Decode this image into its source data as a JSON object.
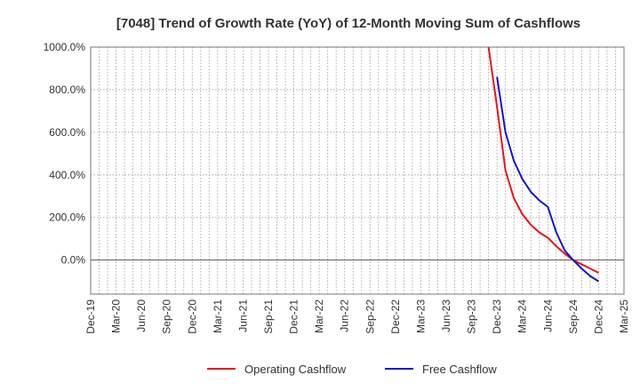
{
  "chart_data": {
    "type": "line",
    "title": "[7048]  Trend of Growth Rate (YoY) of 12-Month Moving Sum of Cashflows",
    "ylim": [
      -160,
      1000
    ],
    "yticks": [
      0,
      200,
      400,
      600,
      800,
      1000
    ],
    "ytick_labels": [
      "0.0%",
      "200.0%",
      "400.0%",
      "600.0%",
      "800.0%",
      "1000.0%"
    ],
    "x_start": "2019-12",
    "x_end": "2025-03",
    "x_tick_labels": [
      "Dec-19",
      "Mar-20",
      "Jun-20",
      "Sep-20",
      "Dec-20",
      "Mar-21",
      "Jun-21",
      "Sep-21",
      "Dec-21",
      "Mar-22",
      "Jun-22",
      "Sep-22",
      "Dec-22",
      "Mar-23",
      "Jun-23",
      "Sep-23",
      "Dec-23",
      "Mar-24",
      "Jun-24",
      "Sep-24",
      "Dec-24",
      "Mar-25"
    ],
    "grid": true,
    "legend_position": "bottom",
    "series": [
      {
        "name": "Operating Cashflow",
        "color": "#e8141c",
        "points": [
          [
            "2023-11",
            1000
          ],
          [
            "2023-12",
            720
          ],
          [
            "2024-01",
            420
          ],
          [
            "2024-02",
            290
          ],
          [
            "2024-03",
            215
          ],
          [
            "2024-04",
            165
          ],
          [
            "2024-05",
            130
          ],
          [
            "2024-06",
            105
          ],
          [
            "2024-07",
            65
          ],
          [
            "2024-08",
            30
          ],
          [
            "2024-09",
            0
          ],
          [
            "2024-10",
            -20
          ],
          [
            "2024-11",
            -40
          ],
          [
            "2024-12",
            -60
          ]
        ]
      },
      {
        "name": "Free Cashflow",
        "color": "#1414d2",
        "points": [
          [
            "2023-12",
            860
          ],
          [
            "2024-01",
            600
          ],
          [
            "2024-02",
            465
          ],
          [
            "2024-03",
            380
          ],
          [
            "2024-04",
            320
          ],
          [
            "2024-05",
            280
          ],
          [
            "2024-06",
            250
          ],
          [
            "2024-07",
            130
          ],
          [
            "2024-08",
            45
          ],
          [
            "2024-09",
            0
          ],
          [
            "2024-10",
            -40
          ],
          [
            "2024-11",
            -75
          ],
          [
            "2024-12",
            -100
          ]
        ]
      }
    ]
  }
}
